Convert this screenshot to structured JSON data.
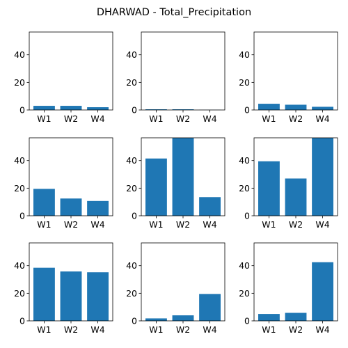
{
  "chart_data": {
    "type": "bar",
    "title": "DHARWAD - Total_Precipitation",
    "layout": "3x3 grid of subplots",
    "categories": [
      "W1",
      "W2",
      "W4"
    ],
    "ylim": [
      0,
      56.5
    ],
    "yticks": [
      0,
      20,
      40
    ],
    "grid": false,
    "bar_color": "#1f77b4",
    "subplots": [
      {
        "values": [
          3.0,
          3.0,
          2.0
        ]
      },
      {
        "values": [
          0.5,
          0.5,
          0.1
        ]
      },
      {
        "values": [
          4.5,
          3.8,
          2.3
        ]
      },
      {
        "values": [
          19.5,
          12.5,
          10.7
        ]
      },
      {
        "values": [
          41.5,
          56.5,
          13.5
        ]
      },
      {
        "values": [
          39.5,
          27.0,
          56.5
        ]
      },
      {
        "values": [
          38.5,
          35.8,
          35.2
        ]
      },
      {
        "values": [
          1.8,
          4.0,
          19.5
        ]
      },
      {
        "values": [
          5.0,
          5.8,
          42.5
        ]
      }
    ]
  }
}
